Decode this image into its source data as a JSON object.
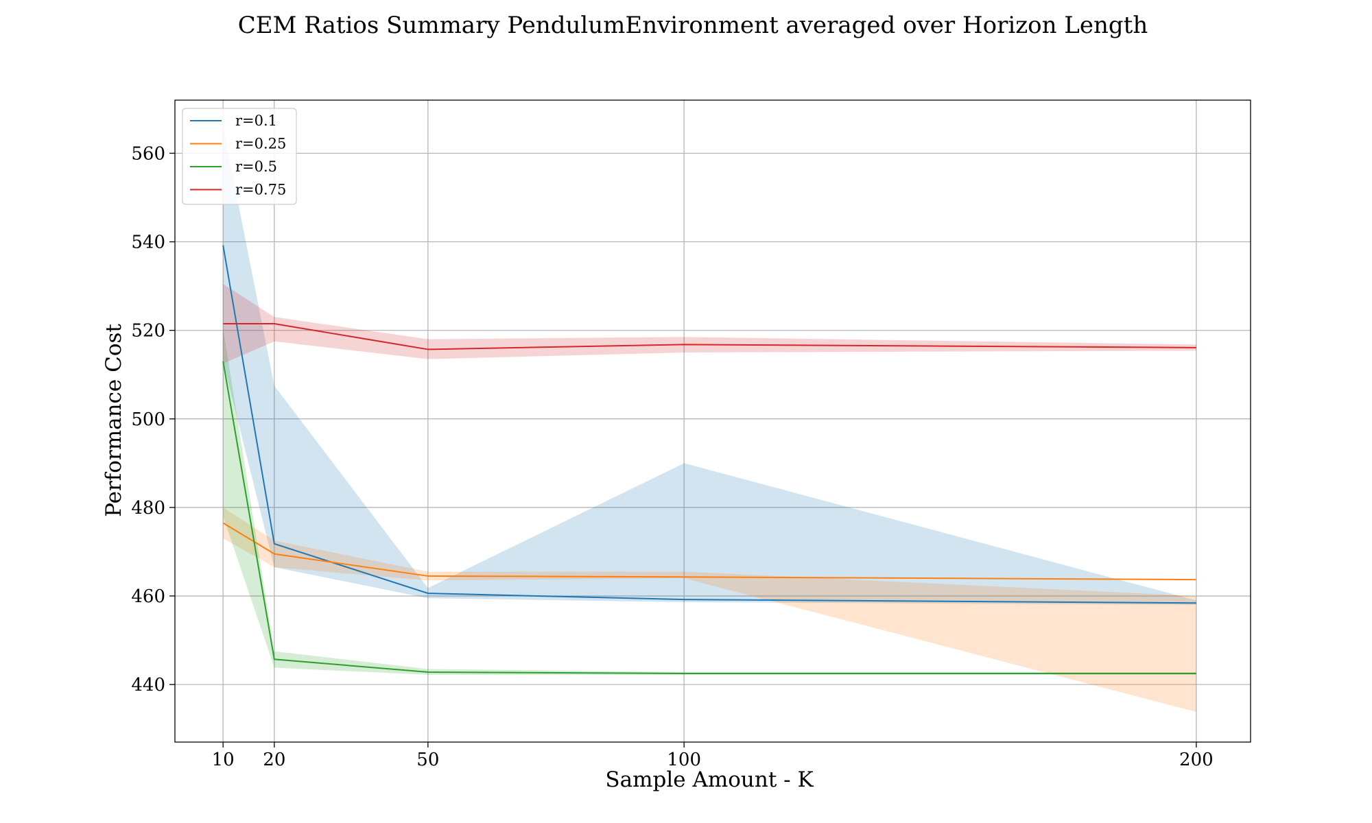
{
  "chart_data": {
    "type": "line",
    "title": "CEM Ratios Summary PendulumEnvironment averaged over Horizon Length",
    "xlabel": "Sample Amount - K",
    "ylabel": "Performance Cost",
    "x": [
      10,
      20,
      50,
      100,
      200
    ],
    "xticks": [
      10,
      20,
      50,
      100,
      200
    ],
    "yticks": [
      440,
      460,
      480,
      500,
      520,
      540,
      560
    ],
    "xlim": [
      0.6,
      210.6
    ],
    "ylim": [
      427,
      572
    ],
    "grid": true,
    "legend_position": "top-left",
    "series": [
      {
        "name": "r=0.1",
        "color": "#1f77b4",
        "values": [
          539.2,
          471.8,
          460.6,
          459.2,
          458.4
        ],
        "lower": [
          513.0,
          466.5,
          459.5,
          458.6,
          458.0
        ],
        "upper": [
          566.0,
          507.5,
          461.8,
          490.0,
          459.0
        ]
      },
      {
        "name": "r=0.25",
        "color": "#ff7f0e",
        "values": [
          476.5,
          469.5,
          464.5,
          464.3,
          463.7
        ],
        "lower": [
          473.0,
          466.5,
          463.5,
          464.0,
          433.8
        ],
        "upper": [
          480.0,
          472.5,
          465.5,
          465.5,
          460.0
        ]
      },
      {
        "name": "r=0.5",
        "color": "#2ca02c",
        "values": [
          513.0,
          445.7,
          442.8,
          442.5,
          442.5
        ],
        "lower": [
          478.0,
          443.8,
          442.2,
          442.2,
          442.2
        ],
        "upper": [
          520.5,
          447.5,
          443.5,
          442.8,
          442.8
        ]
      },
      {
        "name": "r=0.75",
        "color": "#d62728",
        "values": [
          521.5,
          521.5,
          515.7,
          516.8,
          516.1
        ],
        "lower": [
          512.5,
          517.5,
          513.5,
          515.0,
          515.4
        ],
        "upper": [
          530.5,
          523.0,
          518.0,
          518.5,
          516.8
        ]
      }
    ]
  }
}
